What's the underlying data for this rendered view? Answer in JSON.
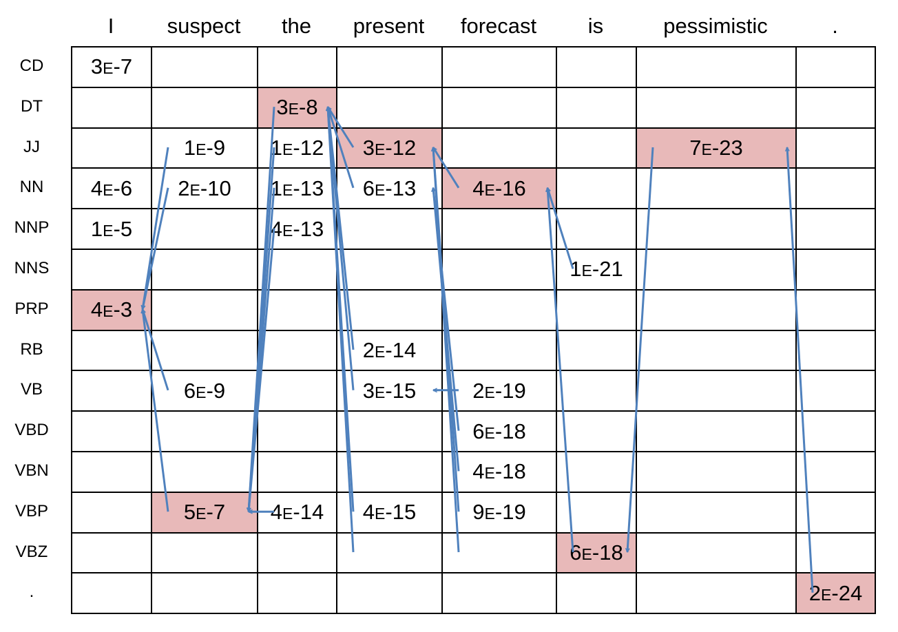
{
  "words": [
    "I",
    "suspect",
    "the",
    "present",
    "forecast",
    "is",
    "pessimistic",
    "."
  ],
  "tags": [
    "CD",
    "DT",
    "JJ",
    "NN",
    "NNP",
    "NNS",
    "PRP",
    "RB",
    "VB",
    "VBD",
    "VBN",
    "VBP",
    "VBZ",
    "."
  ],
  "cells": [
    [
      "3|E|-7",
      "",
      "",
      "",
      "",
      "",
      "",
      ""
    ],
    [
      "",
      "",
      "3|E|-8",
      "",
      "",
      "",
      "",
      ""
    ],
    [
      "",
      "1|E|-9",
      "1|E|-12",
      "3|E|-12",
      "",
      "",
      "7|E|-23",
      ""
    ],
    [
      "4|E|-6",
      "2|E|-10",
      "1|E|-13",
      "6|E|-13",
      "4|E|-16",
      "",
      "",
      ""
    ],
    [
      "1|E|-5",
      "",
      "4|E|-13",
      "",
      "",
      "",
      "",
      ""
    ],
    [
      "",
      "",
      "",
      "",
      "",
      "1|E|-21",
      "",
      ""
    ],
    [
      "4|E|-3",
      "",
      "",
      "",
      "",
      "",
      "",
      ""
    ],
    [
      "",
      "",
      "",
      "2|E|-14",
      "",
      "",
      "",
      ""
    ],
    [
      "",
      "6|E|-9",
      "",
      "3|E|-15",
      "2|E|-19",
      "",
      "",
      ""
    ],
    [
      "",
      "",
      "",
      "",
      "6|E|-18",
      "",
      "",
      ""
    ],
    [
      "",
      "",
      "",
      "",
      "4|E|-18",
      "",
      "",
      ""
    ],
    [
      "",
      "5|E|-7",
      "4|E|-14",
      "4|E|-15",
      "9|E|-19",
      "",
      "",
      ""
    ],
    [
      "",
      "",
      "",
      "",
      "",
      "6|E|-18",
      "",
      ""
    ],
    [
      "",
      "",
      "",
      "",
      "",
      "",
      "",
      "2|E|-24"
    ]
  ],
  "best_path": [
    {
      "tag": "PRP",
      "word_index": 0
    },
    {
      "tag": "VBP",
      "word_index": 1
    },
    {
      "tag": "DT",
      "word_index": 2
    },
    {
      "tag": "JJ",
      "word_index": 3
    },
    {
      "tag": "NN",
      "word_index": 4
    },
    {
      "tag": "VBZ",
      "word_index": 5
    },
    {
      "tag": "JJ",
      "word_index": 6
    },
    {
      "tag": ".",
      "word_index": 7
    }
  ],
  "backpointers": [
    {
      "from_word": 1,
      "from_tag": "JJ",
      "to_word": 0,
      "to_tag": "PRP"
    },
    {
      "from_word": 1,
      "from_tag": "NN",
      "to_word": 0,
      "to_tag": "PRP"
    },
    {
      "from_word": 1,
      "from_tag": "VB",
      "to_word": 0,
      "to_tag": "PRP"
    },
    {
      "from_word": 1,
      "from_tag": "VBP",
      "to_word": 0,
      "to_tag": "PRP"
    },
    {
      "from_word": 2,
      "from_tag": "DT",
      "to_word": 1,
      "to_tag": "VBP"
    },
    {
      "from_word": 2,
      "from_tag": "JJ",
      "to_word": 1,
      "to_tag": "VBP"
    },
    {
      "from_word": 2,
      "from_tag": "NN",
      "to_word": 1,
      "to_tag": "VBP"
    },
    {
      "from_word": 2,
      "from_tag": "NNP",
      "to_word": 1,
      "to_tag": "VBP"
    },
    {
      "from_word": 2,
      "from_tag": "VBP",
      "to_word": 1,
      "to_tag": "VBP"
    },
    {
      "from_word": 3,
      "from_tag": "JJ",
      "to_word": 2,
      "to_tag": "DT"
    },
    {
      "from_word": 3,
      "from_tag": "NN",
      "to_word": 2,
      "to_tag": "DT"
    },
    {
      "from_word": 3,
      "from_tag": "RB",
      "to_word": 2,
      "to_tag": "DT"
    },
    {
      "from_word": 3,
      "from_tag": "VB",
      "to_word": 2,
      "to_tag": "DT"
    },
    {
      "from_word": 3,
      "from_tag": "VBP",
      "to_word": 2,
      "to_tag": "DT"
    },
    {
      "from_word": 3,
      "from_tag": "VBZ",
      "to_word": 2,
      "to_tag": "DT"
    },
    {
      "from_word": 4,
      "from_tag": "NN",
      "to_word": 3,
      "to_tag": "JJ"
    },
    {
      "from_word": 4,
      "from_tag": "VB",
      "to_word": 3,
      "to_tag": "VB"
    },
    {
      "from_word": 4,
      "from_tag": "VBD",
      "to_word": 3,
      "to_tag": "NN"
    },
    {
      "from_word": 4,
      "from_tag": "VBN",
      "to_word": 3,
      "to_tag": "NN"
    },
    {
      "from_word": 4,
      "from_tag": "VBP",
      "to_word": 3,
      "to_tag": "JJ"
    },
    {
      "from_word": 4,
      "from_tag": "VBZ",
      "to_word": 3,
      "to_tag": "JJ"
    },
    {
      "from_word": 5,
      "from_tag": "NNS",
      "to_word": 4,
      "to_tag": "NN"
    },
    {
      "from_word": 5,
      "from_tag": "VBZ",
      "to_word": 4,
      "to_tag": "NN"
    },
    {
      "from_word": 6,
      "from_tag": "JJ",
      "to_word": 5,
      "to_tag": "VBZ"
    },
    {
      "from_word": 7,
      "from_tag": ".",
      "to_word": 6,
      "to_tag": "JJ"
    }
  ],
  "colors": {
    "highlight": "#e8b9b9",
    "arrow": "#4f81bd",
    "grid": "#000000"
  }
}
